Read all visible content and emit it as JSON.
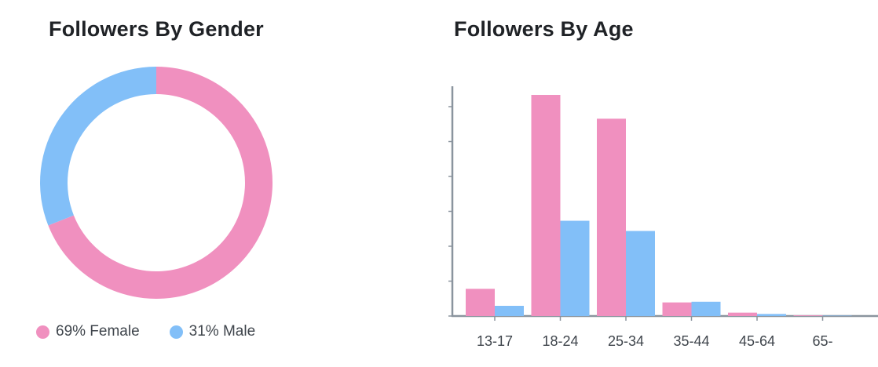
{
  "colors": {
    "female": "#f090bf",
    "male": "#82bff8",
    "axis": "#8a949e"
  },
  "chart_data": [
    {
      "type": "pie",
      "title": "Followers By Gender",
      "slices": [
        {
          "label": "69% Female",
          "value": 69,
          "color": "#f090bf"
        },
        {
          "label": "31% Male",
          "value": 31,
          "color": "#82bff8"
        }
      ],
      "legend": "bottom"
    },
    {
      "type": "bar",
      "title": "Followers By Age",
      "categories": [
        "13-17",
        "18-24",
        "25-34",
        "35-44",
        "45-64",
        "65-"
      ],
      "series": [
        {
          "values": [
            8,
            65,
            58,
            4,
            1,
            0.2
          ],
          "color": "#f090bf"
        },
        {
          "values": [
            3,
            28,
            25,
            4.2,
            0.6,
            0.1
          ],
          "color": "#82bff8"
        }
      ],
      "ylim": [
        0,
        68
      ],
      "grid": false
    }
  ]
}
